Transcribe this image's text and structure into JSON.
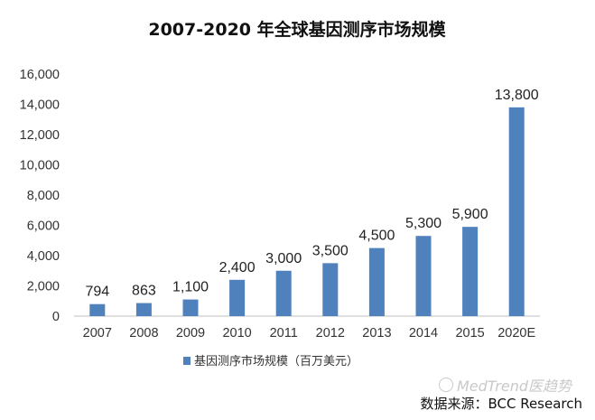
{
  "chart_data": {
    "type": "bar",
    "title": "2007-2020 年全球基因测序市场规模",
    "categories": [
      "2007",
      "2008",
      "2009",
      "2010",
      "2011",
      "2012",
      "2013",
      "2014",
      "2015",
      "2020E"
    ],
    "series": [
      {
        "name": "基因测序市场规模（百万美元）",
        "values": [
          794,
          863,
          1100,
          2400,
          3000,
          3500,
          4500,
          5300,
          5900,
          13800
        ],
        "labels": [
          "794",
          "863",
          "1,100",
          "2,400",
          "3,000",
          "3,500",
          "4,500",
          "5,300",
          "5,900",
          "13,800"
        ]
      }
    ],
    "ylim": [
      0,
      16000
    ],
    "yticks": [
      0,
      2000,
      4000,
      6000,
      8000,
      10000,
      12000,
      14000,
      16000
    ],
    "ytick_labels": [
      "0",
      "2,000",
      "4,000",
      "6,000",
      "8,000",
      "10,000",
      "12,000",
      "14,000",
      "16,000"
    ],
    "xlabel": "",
    "ylabel": "",
    "grid": false,
    "legend_position": "bottom-left",
    "colors": {
      "bar": "#4f81bd",
      "axis": "#bfbfbf"
    }
  },
  "source": "数据来源：BCC Research",
  "watermark": "MedTrend医趋势"
}
